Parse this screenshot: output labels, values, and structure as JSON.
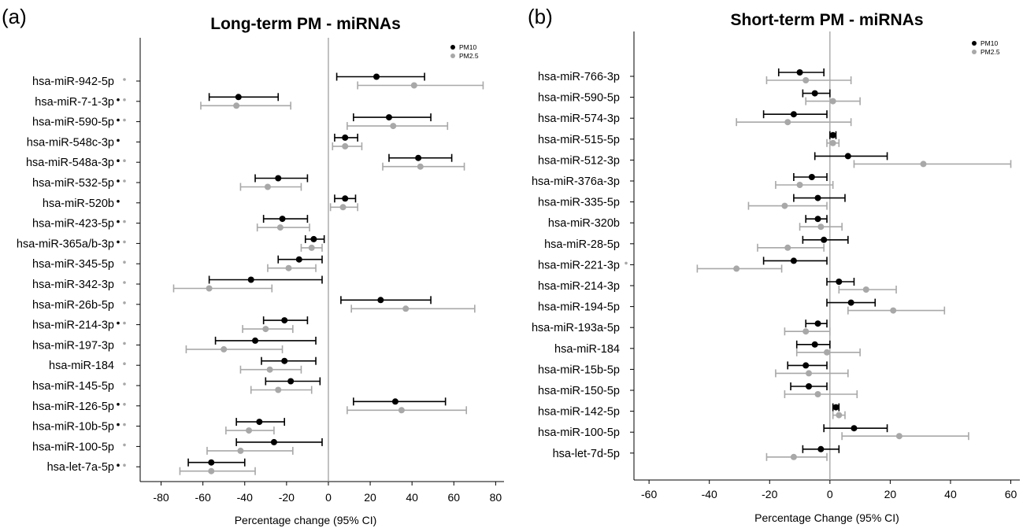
{
  "chart_data": [
    {
      "type": "forest",
      "panel_label": "(a)",
      "title": "Long-term PM - miRNAs",
      "xlabel": "Percentage change (95% CI)",
      "xlim": [
        -90,
        84
      ],
      "xticks": [
        -80,
        -60,
        -40,
        -20,
        0,
        20,
        40,
        60,
        80
      ],
      "reference_line": 0,
      "legend": {
        "position": "top-right",
        "entries": [
          {
            "name": "PM10",
            "color": "#000000"
          },
          {
            "name": "PM2.5",
            "color": "#9e9e9e"
          }
        ]
      },
      "categories": [
        "hsa-miR-942-5p",
        "hsa-miR-7-1-3p",
        "hsa-miR-590-5p",
        "hsa-miR-548c-3p",
        "hsa-miR-548a-3p",
        "hsa-miR-532-5p",
        "hsa-miR-520b",
        "hsa-miR-423-5p",
        "hsa-miR-365a/b-3p",
        "hsa-miR-345-5p",
        "hsa-miR-342-3p",
        "hsa-miR-26b-5p",
        "hsa-miR-214-3p",
        "hsa-miR-197-3p",
        "hsa-miR-184",
        "hsa-miR-145-5p",
        "hsa-miR-126-5p",
        "hsa-miR-10b-5p",
        "hsa-miR-100-5p",
        "hsa-let-7a-5p"
      ],
      "significance_marks": [
        [
          false,
          true
        ],
        [
          true,
          true
        ],
        [
          true,
          true
        ],
        [
          true,
          false
        ],
        [
          true,
          true
        ],
        [
          true,
          true
        ],
        [
          true,
          false
        ],
        [
          true,
          true
        ],
        [
          true,
          true
        ],
        [
          false,
          true
        ],
        [
          false,
          true
        ],
        [
          false,
          true
        ],
        [
          true,
          true
        ],
        [
          false,
          true
        ],
        [
          false,
          true
        ],
        [
          false,
          true
        ],
        [
          true,
          true
        ],
        [
          true,
          true
        ],
        [
          false,
          true
        ],
        [
          true,
          true
        ]
      ],
      "series": [
        {
          "name": "PM10",
          "color": "#000000",
          "values": [
            23,
            -43,
            29,
            8,
            43,
            -24,
            8,
            -22,
            -7,
            -14,
            -37,
            25,
            -21,
            -35,
            -21,
            -18,
            32,
            -33,
            -26,
            -56
          ],
          "lower": [
            4,
            -57,
            12,
            3,
            29,
            -35,
            3,
            -31,
            -11,
            -24,
            -57,
            6,
            -31,
            -54,
            -32,
            -30,
            12,
            -44,
            -44,
            -67
          ],
          "upper": [
            46,
            -24,
            49,
            14,
            59,
            -10,
            13,
            -10,
            -2,
            -3,
            -3,
            49,
            -10,
            -6,
            -6,
            -4,
            56,
            -21,
            -3,
            -40
          ]
        },
        {
          "name": "PM2.5",
          "color": "#9e9e9e",
          "values": [
            41,
            -44,
            31,
            8,
            44,
            -29,
            7,
            -23,
            -8,
            -19,
            -57,
            37,
            -30,
            -50,
            -28,
            -24,
            35,
            -38,
            -42,
            -56
          ],
          "lower": [
            14,
            -61,
            9,
            2,
            26,
            -42,
            1,
            -34,
            -13,
            -29,
            -74,
            11,
            -41,
            -68,
            -42,
            -37,
            9,
            -49,
            -58,
            -71
          ],
          "upper": [
            74,
            -18,
            57,
            16,
            65,
            -13,
            14,
            -9,
            -3,
            -6,
            -27,
            70,
            -17,
            -22,
            -13,
            -8,
            66,
            -26,
            -17,
            -35
          ]
        }
      ]
    },
    {
      "type": "forest",
      "panel_label": "(b)",
      "title": "Short-term PM - miRNAs",
      "xlabel": "Percentage Change (95% CI)",
      "xlim": [
        -65,
        63
      ],
      "xticks": [
        -60,
        -40,
        -20,
        0,
        20,
        40,
        60
      ],
      "reference_line": 0,
      "legend": {
        "position": "top-right",
        "entries": [
          {
            "name": "PM10",
            "color": "#000000"
          },
          {
            "name": "PM2.5",
            "color": "#9e9e9e"
          }
        ]
      },
      "categories": [
        "hsa-miR-766-3p",
        "hsa-miR-590-5p",
        "hsa-miR-574-3p",
        "hsa-miR-515-5p",
        "hsa-miR-512-3p",
        "hsa-miR-376a-3p",
        "hsa-miR-335-5p",
        "hsa-miR-320b",
        "hsa-miR-28-5p",
        "hsa-miR-221-3p",
        "hsa-miR-214-3p",
        "hsa-miR-194-5p",
        "hsa-miR-193a-5p",
        "hsa-miR-184",
        "hsa-miR-15b-5p",
        "hsa-miR-150-5p",
        "hsa-miR-142-5p",
        "hsa-miR-100-5p",
        "hsa-let-7d-5p"
      ],
      "significance_marks": [
        [
          false,
          false
        ],
        [
          false,
          false
        ],
        [
          false,
          false
        ],
        [
          false,
          false
        ],
        [
          false,
          false
        ],
        [
          false,
          false
        ],
        [
          false,
          false
        ],
        [
          false,
          false
        ],
        [
          false,
          false
        ],
        [
          false,
          true
        ],
        [
          false,
          false
        ],
        [
          false,
          false
        ],
        [
          false,
          false
        ],
        [
          false,
          false
        ],
        [
          false,
          false
        ],
        [
          false,
          false
        ],
        [
          false,
          false
        ],
        [
          false,
          false
        ],
        [
          false,
          false
        ]
      ],
      "series": [
        {
          "name": "PM10",
          "color": "#000000",
          "values": [
            -10,
            -5,
            -12,
            1,
            6,
            -6,
            -4,
            -4,
            -2,
            -12,
            3,
            7,
            -4,
            -5,
            -8,
            -7,
            2,
            8,
            -3
          ],
          "lower": [
            -17,
            -9,
            -22,
            0,
            -5,
            -12,
            -12,
            -8,
            -9,
            -22,
            -1,
            -1,
            -8,
            -11,
            -14,
            -13,
            1,
            -2,
            -9
          ],
          "upper": [
            -2,
            0,
            -1,
            2,
            19,
            -1,
            5,
            -1,
            6,
            -1,
            8,
            15,
            -1,
            0,
            -1,
            -1,
            3,
            19,
            3
          ]
        },
        {
          "name": "PM2.5",
          "color": "#9e9e9e",
          "values": [
            -8,
            1,
            -14,
            1,
            31,
            -10,
            -15,
            -3,
            -14,
            -31,
            12,
            21,
            -8,
            -1,
            -7,
            -4,
            3,
            23,
            -12
          ],
          "lower": [
            -21,
            -8,
            -31,
            -1,
            8,
            -18,
            -27,
            -10,
            -24,
            -44,
            3,
            6,
            -15,
            -11,
            -18,
            -15,
            1,
            4,
            -21
          ],
          "upper": [
            7,
            10,
            7,
            3,
            60,
            1,
            -1,
            4,
            -2,
            -16,
            22,
            38,
            0,
            10,
            6,
            9,
            5,
            46,
            -1
          ]
        }
      ]
    }
  ]
}
